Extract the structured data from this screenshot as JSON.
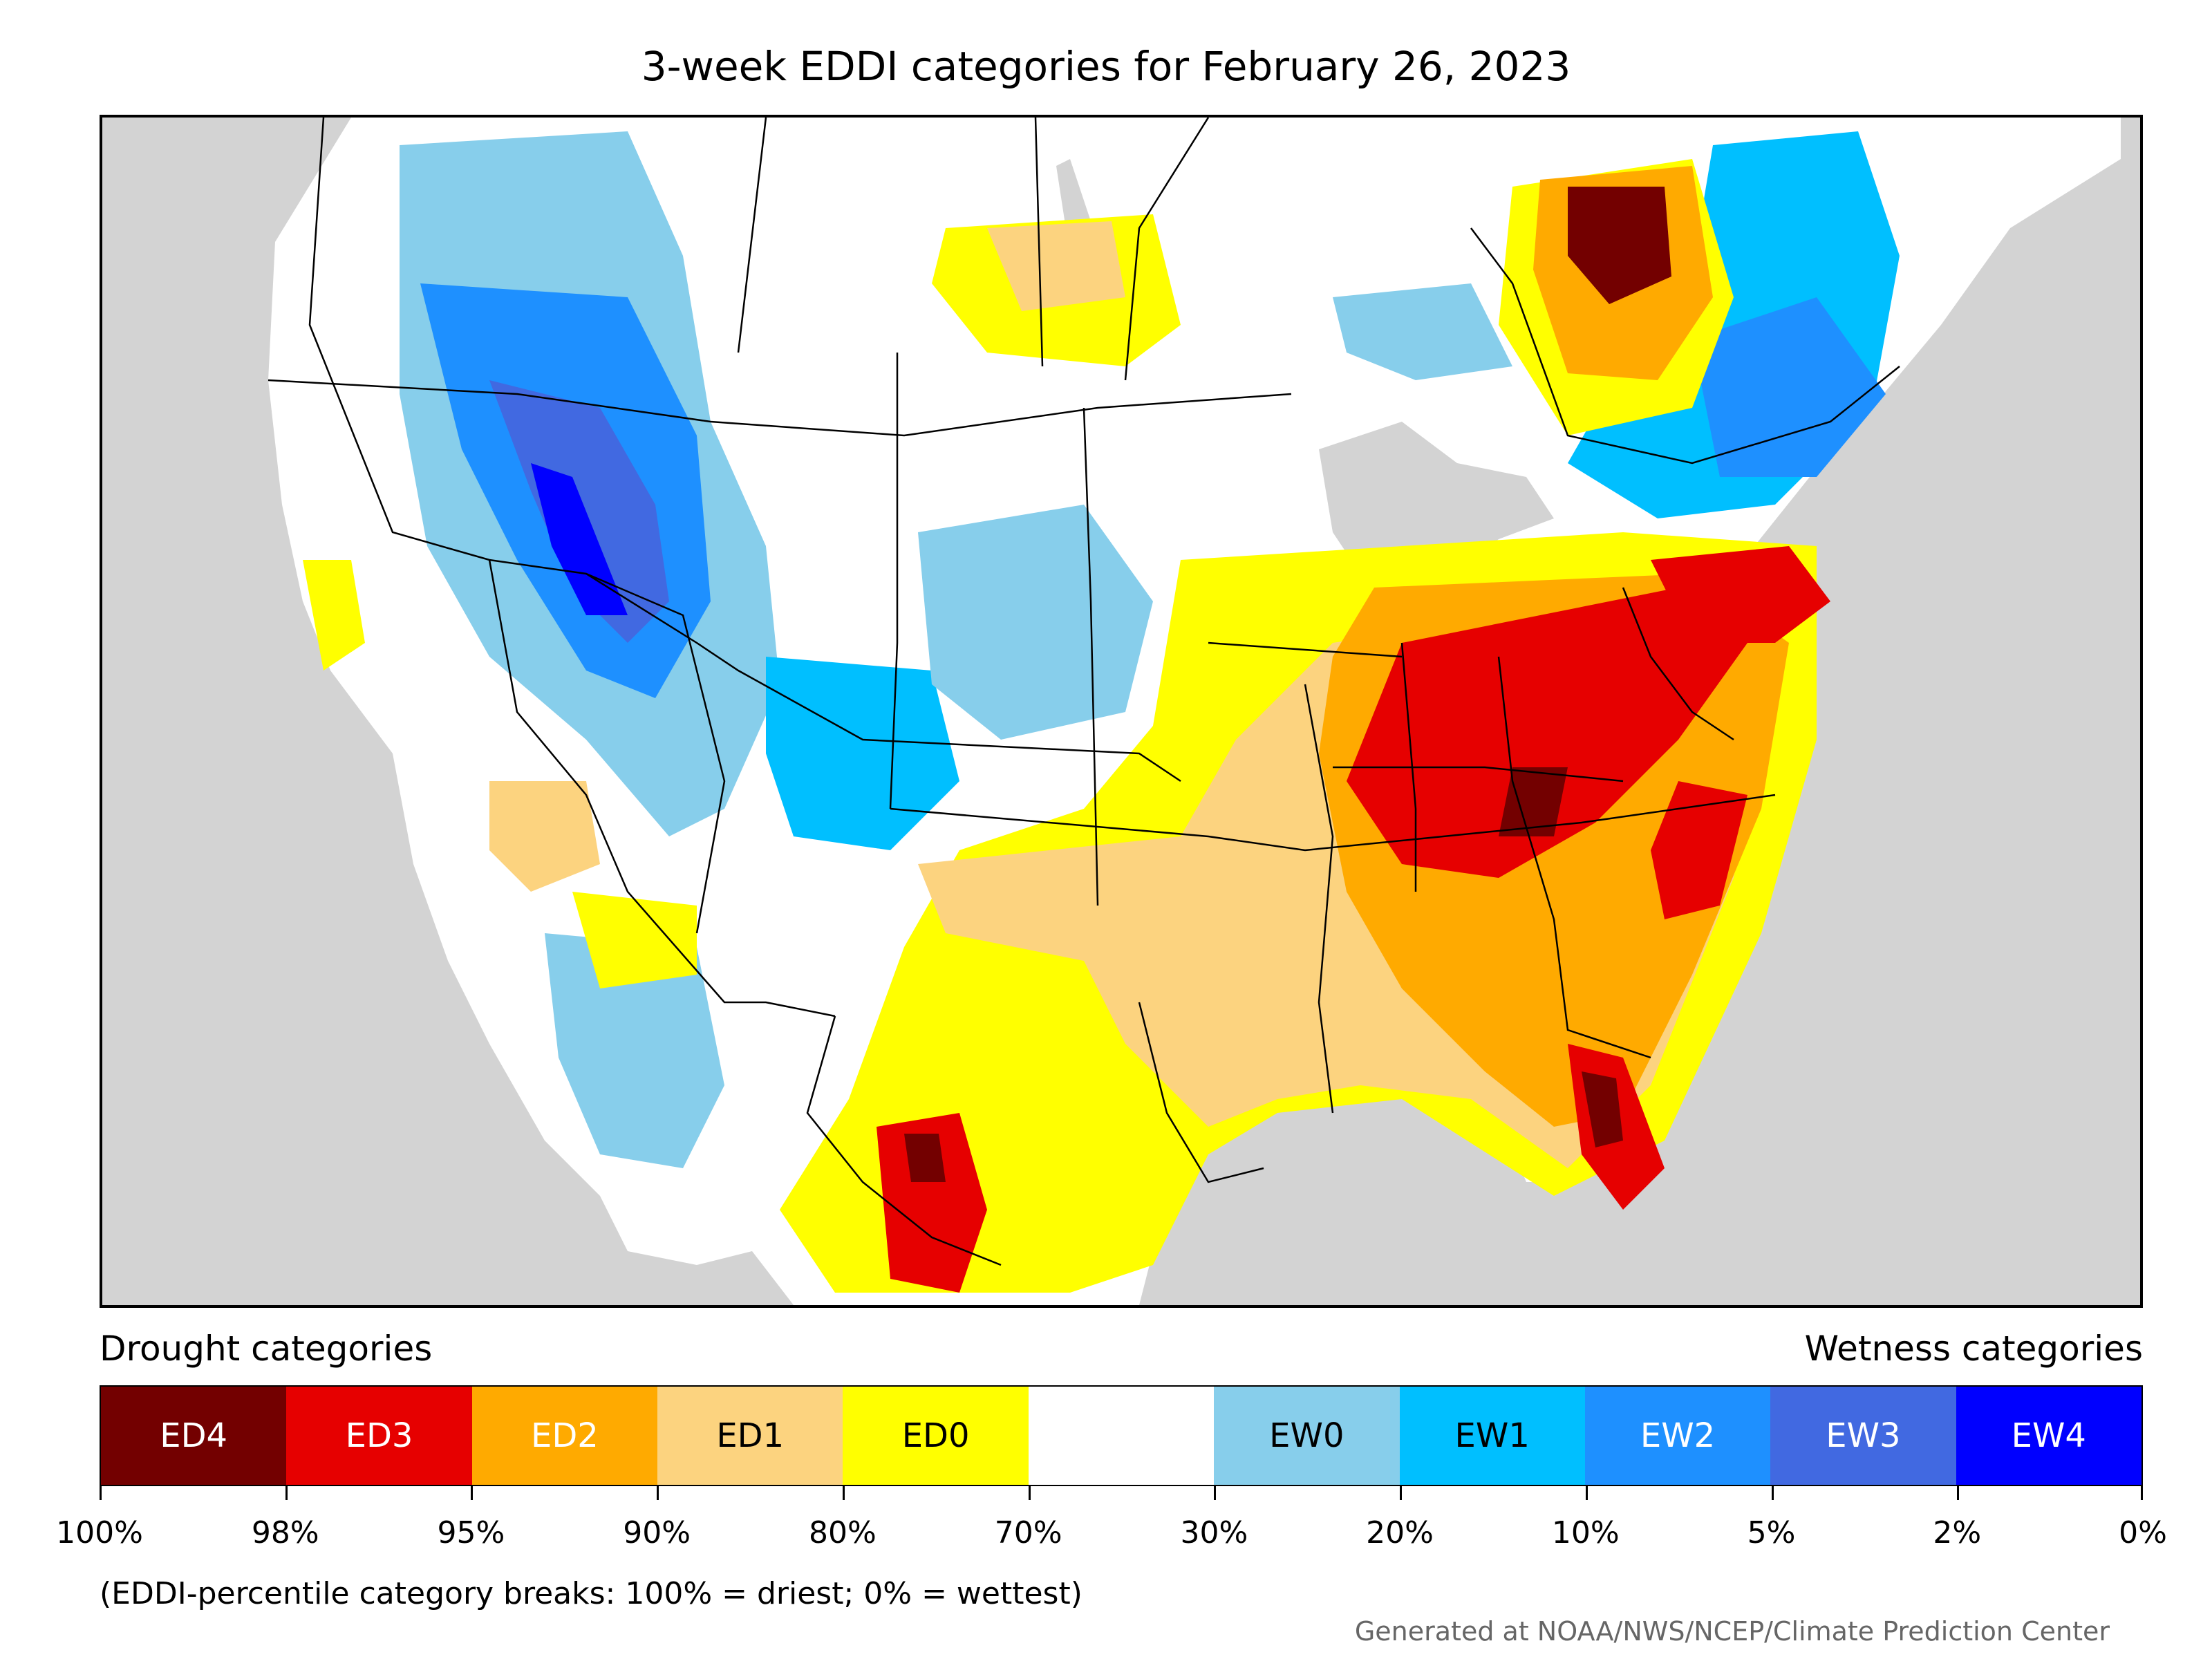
{
  "title": "3-week EDDI categories for February 26, 2023",
  "legend": {
    "drought_label": "Drought categories",
    "wetness_label": "Wetness categories",
    "categories": [
      {
        "label": "ED4",
        "color": "#730000",
        "text_color": "#ffffff"
      },
      {
        "label": "ED3",
        "color": "#e60000",
        "text_color": "#ffffff"
      },
      {
        "label": "ED2",
        "color": "#ffaa00",
        "text_color": "#ffffff"
      },
      {
        "label": "ED1",
        "color": "#fcd37f",
        "text_color": "#000000"
      },
      {
        "label": "ED0",
        "color": "#ffff00",
        "text_color": "#000000"
      },
      {
        "label": "",
        "color": "#ffffff",
        "text_color": "#000000"
      },
      {
        "label": "EW0",
        "color": "#87ceeb",
        "text_color": "#000000"
      },
      {
        "label": "EW1",
        "color": "#00bfff",
        "text_color": "#000000"
      },
      {
        "label": "EW2",
        "color": "#1e90ff",
        "text_color": "#ffffff"
      },
      {
        "label": "EW3",
        "color": "#4169e1",
        "text_color": "#ffffff"
      },
      {
        "label": "EW4",
        "color": "#0000ff",
        "text_color": "#ffffff"
      }
    ],
    "ticks": [
      "100%",
      "98%",
      "95%",
      "90%",
      "80%",
      "70%",
      "30%",
      "20%",
      "10%",
      "5%",
      "2%",
      "0%"
    ]
  },
  "footnote": "(EDDI-percentile category breaks: 100% = driest; 0% = wettest)",
  "credit": "Generated at NOAA/NWS/NCEP/Climate Prediction Center"
}
